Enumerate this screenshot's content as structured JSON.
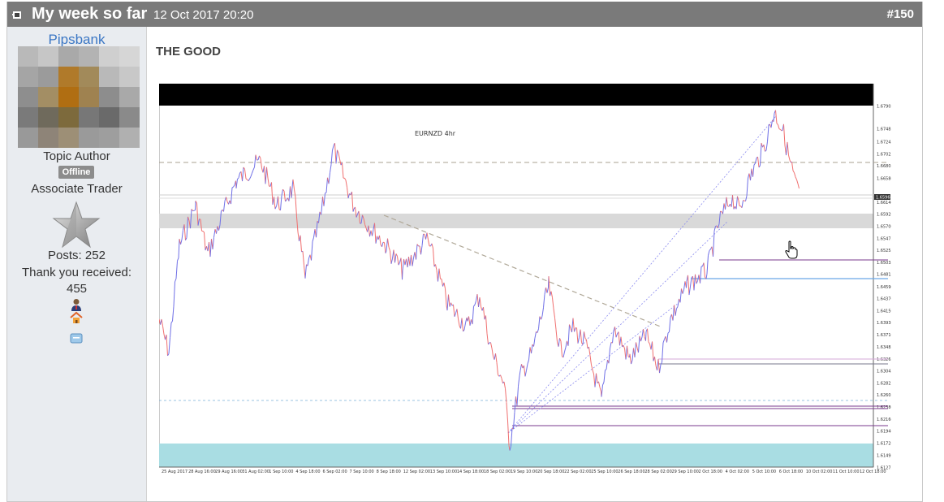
{
  "post": {
    "title": "My week so far",
    "date": "12 Oct 2017 20:20",
    "number": "#150"
  },
  "author": {
    "name": "Pipsbank",
    "role": "Topic Author",
    "status": "Offline",
    "rank": "Associate Trader",
    "posts": "Posts: 252",
    "thanks_label": "Thank you received:",
    "thanks_value": "455"
  },
  "content": {
    "heading": "THE GOOD"
  },
  "chart_data": {
    "type": "line",
    "title": "EURNZD 4hr",
    "ylim": [
      1.6128,
      1.6791
    ],
    "y_ticks": [
      "1.67905",
      "1.67485",
      "1.67245",
      "1.67025",
      "1.66805",
      "1.66580",
      "1.66140",
      "1.65920",
      "1.65700",
      "1.65475",
      "1.65255",
      "1.65035",
      "1.64815",
      "1.64590",
      "1.64370",
      "1.64150",
      "1.63930",
      "1.63710",
      "1.63485",
      "1.63265",
      "1.63045",
      "1.62825",
      "1.62605",
      "1.62380",
      "1.62160",
      "1.61940",
      "1.61720",
      "1.61495",
      "1.61275"
    ],
    "x_ticks": [
      "25 Aug 2017",
      "28 Aug 16:00",
      "29 Aug 16:00",
      "31 Aug 02:00",
      "1 Sep 10:00",
      "4 Sep 18:00",
      "6 Sep 02:00",
      "7 Sep 10:00",
      "8 Sep 18:00",
      "12 Sep 02:00",
      "13 Sep 10:00",
      "14 Sep 18:00",
      "18 Sep 02:00",
      "19 Sep 10:00",
      "20 Sep 18:00",
      "22 Sep 02:00",
      "25 Sep 10:00",
      "26 Sep 18:00",
      "28 Sep 02:00",
      "29 Sep 10:00",
      "2 Oct 18:00",
      "4 Oct 02:00",
      "5 Oct 10:00",
      "6 Oct 18:00",
      "10 Oct 02:00",
      "11 Oct 10:00",
      "12 Oct 18:00"
    ],
    "current_price": "1.65960",
    "colors": {
      "up": "#6f6fe6",
      "down": "#f07070",
      "zone": "#d9d9d9",
      "bottom_zone": "#a9dde3",
      "band": "#000000"
    }
  }
}
